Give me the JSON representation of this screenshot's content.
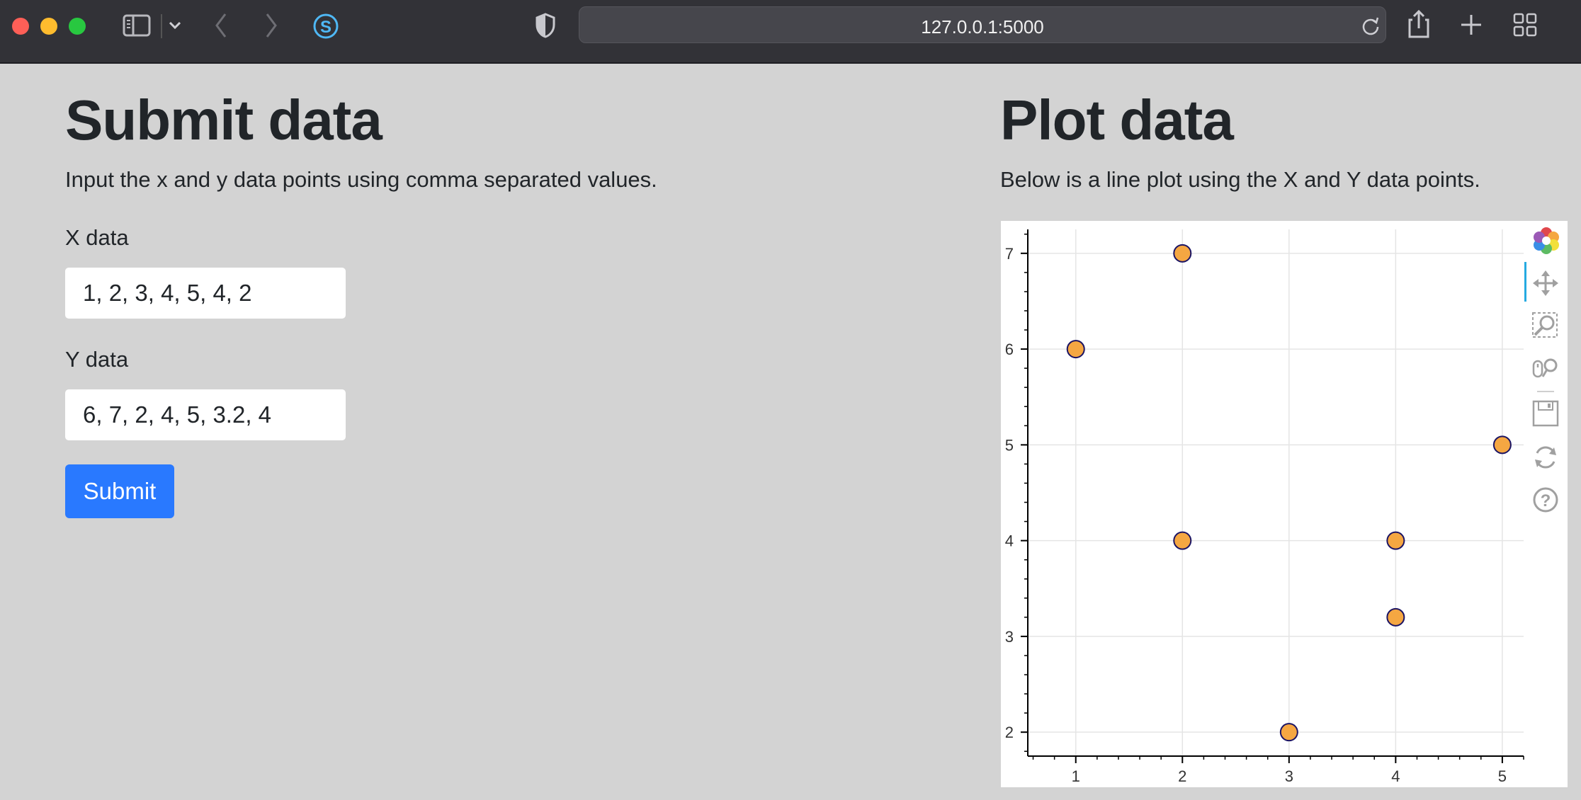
{
  "browser": {
    "url": "127.0.0.1:5000"
  },
  "submit": {
    "title": "Submit data",
    "description": "Input the x and y data points using comma separated values.",
    "x_label": "X data",
    "x_value": "1, 2, 3, 4, 5, 4, 2",
    "y_label": "Y data",
    "y_value": "6, 7, 2, 4, 5, 3.2, 4",
    "button_label": "Submit"
  },
  "plot_section": {
    "title": "Plot data",
    "description": "Below is a line plot using the X and Y data points."
  },
  "toolbar": [
    "bokeh-logo",
    "pan",
    "box-zoom",
    "wheel-zoom",
    "save",
    "reset",
    "help"
  ],
  "chart_data": {
    "type": "scatter",
    "x": [
      1,
      2,
      3,
      4,
      5,
      4,
      2
    ],
    "y": [
      6,
      7,
      2,
      4,
      5,
      3.2,
      4
    ],
    "xlim": [
      0.55,
      5.2
    ],
    "ylim": [
      1.75,
      7.25
    ],
    "x_ticks": [
      "1",
      "2",
      "3",
      "4",
      "5"
    ],
    "y_ticks": [
      "2",
      "3",
      "4",
      "5",
      "6",
      "7"
    ],
    "grid": true,
    "marker_fill": "#f5a742",
    "marker_line": "#1b1464"
  }
}
